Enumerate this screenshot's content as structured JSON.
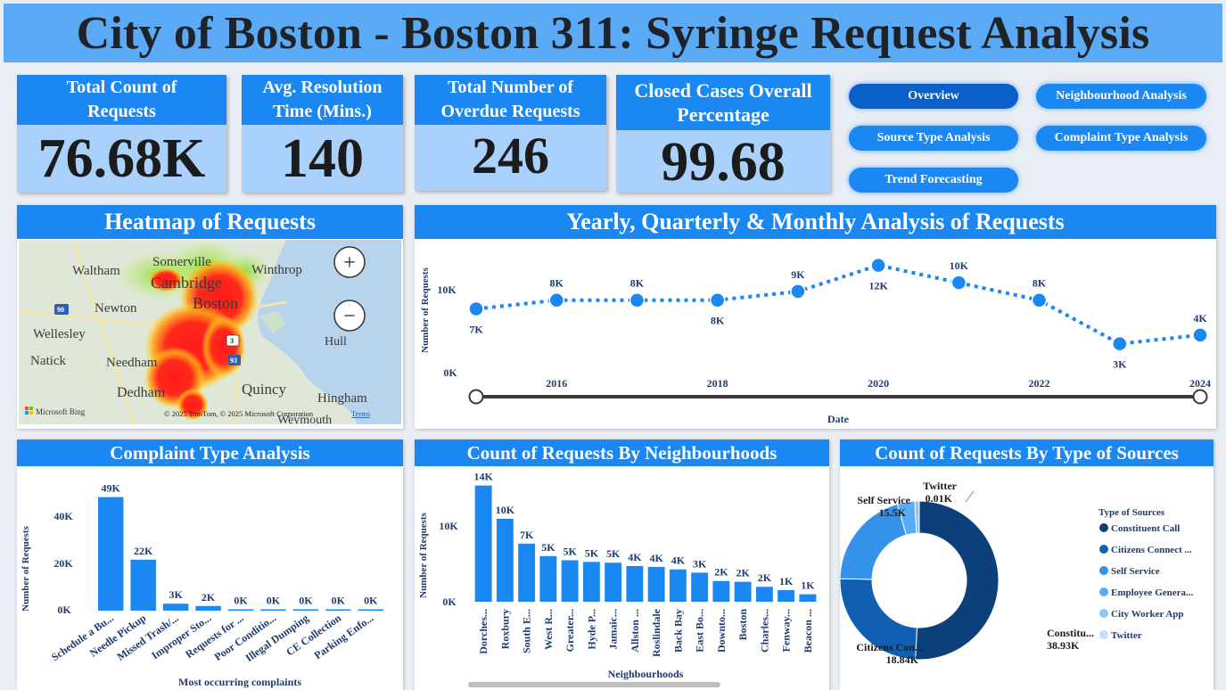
{
  "title": "City of Boston - Boston 311: Syringe Request Analysis",
  "kpis": {
    "total_count": {
      "label": "Total Count of Requests",
      "value": "76.68K"
    },
    "avg_resolution": {
      "label": "Avg. Resolution Time (Mins.)",
      "value": "140"
    },
    "overdue": {
      "label": "Total Number of Overdue Requests",
      "value": "246"
    },
    "closed_pct": {
      "label": "Closed Cases Overall Percentage",
      "value": "99.68"
    }
  },
  "nav": {
    "overview": "Overview",
    "neighbourhood": "Neighbourhood Analysis",
    "source_type": "Source Type Analysis",
    "complaint_type": "Complaint Type Analysis",
    "trend": "Trend Forecasting"
  },
  "heatmap": {
    "title": "Heatmap of Requests",
    "places": [
      "Somerville",
      "Waltham",
      "Winthrop",
      "Cambridge",
      "Boston",
      "Newton",
      "Wellesley",
      "Hull",
      "Natick",
      "Needham",
      "Quincy",
      "Hingham",
      "Dedham",
      "Weymouth"
    ],
    "road_labels": [
      "90",
      "3",
      "93"
    ],
    "attribution": "© 2025 TomTom, © 2025 Microsoft Corporation",
    "terms": "Terms",
    "bing": "Microsoft Bing",
    "zoom_in": "+",
    "zoom_out": "−"
  },
  "yearly": {
    "title": "Yearly, Quarterly & Monthly Analysis of Requests",
    "ylabel": "Number of Requests",
    "xlabel": "Date",
    "yticks": [
      "10K",
      "0K"
    ],
    "xticks": [
      "2016",
      "2018",
      "2020",
      "2022",
      "2024"
    ]
  },
  "complaint": {
    "title": "Complaint Type Analysis",
    "ylabel": "Number of Requests",
    "xlabel": "Most occurring complaints",
    "yticks": [
      "40K",
      "20K",
      "0K"
    ]
  },
  "neighbourhood": {
    "title": "Count of Requests By Neighbourhoods",
    "ylabel": "Number of Requests",
    "xlabel": "Neighbourhoods",
    "yticks": [
      "10K",
      "0K"
    ]
  },
  "sources": {
    "title": "Count of Requests By Type of Sources",
    "legend_title": "Type of  Sources"
  },
  "colors": {
    "accent": "#1a87f3",
    "title_bg": "#5aaaf5",
    "kpi_bg": "#a9d1fb",
    "tick_text": "#1f3b6e"
  },
  "chart_data": [
    {
      "type": "line",
      "x": [
        2015,
        2016,
        2017,
        2018,
        2019,
        2020,
        2021,
        2022,
        2023,
        2024
      ],
      "values": [
        7000,
        8000,
        8000,
        8000,
        9000,
        12000,
        10000,
        8000,
        3000,
        4000
      ],
      "labels": [
        "7K",
        "8K",
        "8K",
        "8K",
        "9K",
        "12K",
        "10K",
        "8K",
        "3K",
        "4K"
      ],
      "ylim": [
        0,
        14000
      ],
      "xlabel": "Date",
      "ylabel": "Number of Requests"
    },
    {
      "type": "bar",
      "categories": [
        "Schedule a Bu...",
        "Needle Pickup",
        "Missed Trash/...",
        "Improper Sto...",
        "Requests for ...",
        "Poor Conditio...",
        "Illegal Dumping",
        "CE Collection",
        "Parking Enfo..."
      ],
      "values": [
        49000,
        22000,
        3000,
        2000,
        100,
        50,
        30,
        20,
        10
      ],
      "labels": [
        "49K",
        "22K",
        "3K",
        "2K",
        "0K",
        "0K",
        "0K",
        "0K",
        "0K"
      ],
      "ylim": [
        0,
        50000
      ],
      "xlabel": "Most occurring complaints",
      "ylabel": "Number of Requests"
    },
    {
      "type": "bar",
      "categories": [
        "Dorches...",
        "Roxbury",
        "South E...",
        "West R...",
        "Greater...",
        "Hyde P...",
        "Jamaic...",
        "Allston ...",
        "Roslindale",
        "Back Bay",
        "East Bo...",
        "Downto...",
        "Boston",
        "Charles...",
        "Fenway...",
        "Beacon ..."
      ],
      "values": [
        14000,
        10000,
        7000,
        5500,
        5000,
        4800,
        4700,
        4300,
        4200,
        3900,
        3500,
        2500,
        2400,
        1800,
        1400,
        900
      ],
      "labels": [
        "14K",
        "10K",
        "7K",
        "5K",
        "5K",
        "5K",
        "5K",
        "4K",
        "4K",
        "4K",
        "3K",
        "2K",
        "2K",
        "2K",
        "1K",
        "1K"
      ],
      "ylim": [
        0,
        14500
      ],
      "xlabel": "Neighbourhoods",
      "ylabel": "Number of Requests"
    },
    {
      "type": "pie",
      "donut": true,
      "categories": [
        "Constituent Call",
        "Citizens Connect ...",
        "Self Service",
        "Employee Genera...",
        "City Worker App",
        "Twitter"
      ],
      "values": [
        38930,
        18840,
        15500,
        2700,
        700,
        10
      ],
      "labels": [
        {
          "name": "Constitu...",
          "value": "38.93K"
        },
        {
          "name": "Citizens Con...",
          "value": "18.84K"
        },
        {
          "name": "Self Service",
          "value": "15.5K"
        },
        {
          "name": "Twitter",
          "value": "0.01K"
        }
      ],
      "colors": [
        "#0d3f7a",
        "#115fb1",
        "#3592ea",
        "#5aaaf5",
        "#8cc5fb",
        "#bfe0ff"
      ]
    }
  ]
}
